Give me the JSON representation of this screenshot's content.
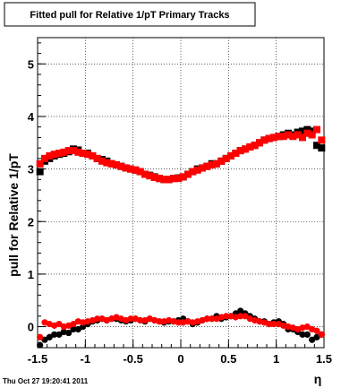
{
  "title": "Fitted pull for Relative 1/pT  Primary Tracks",
  "timestamp": "Thu Oct 27 19:20:41 2011",
  "chart_data": {
    "type": "scatter",
    "title": "Fitted pull for Relative 1/pT  Primary Tracks",
    "xlabel": "η",
    "ylabel": "pull for Relative 1/pT",
    "xlim": [
      -1.5,
      1.5
    ],
    "ylim": [
      -0.4,
      5.5
    ],
    "xticks": [
      "-1.5",
      "-1",
      "-0.5",
      "0",
      "0.5",
      "1",
      "1.5"
    ],
    "yticks": [
      "0",
      "1",
      "2",
      "3",
      "4",
      "5"
    ],
    "grid": true,
    "series": [
      {
        "color": "#000000",
        "marker": "square",
        "x": [
          -1.475,
          -1.425,
          -1.375,
          -1.325,
          -1.275,
          -1.225,
          -1.175,
          -1.125,
          -1.075,
          -1.025,
          -0.975,
          -0.925,
          -0.875,
          -0.825,
          -0.775,
          -0.725,
          -0.675,
          -0.625,
          -0.575,
          -0.525,
          -0.475,
          -0.425,
          -0.375,
          -0.325,
          -0.275,
          -0.225,
          -0.175,
          -0.125,
          -0.075,
          -0.025,
          0.025,
          0.075,
          0.125,
          0.175,
          0.225,
          0.275,
          0.325,
          0.375,
          0.425,
          0.475,
          0.525,
          0.575,
          0.625,
          0.675,
          0.725,
          0.775,
          0.825,
          0.875,
          0.925,
          0.975,
          1.025,
          1.075,
          1.125,
          1.175,
          1.225,
          1.275,
          1.325,
          1.375,
          1.425,
          1.475
        ],
        "values": [
          2.95,
          3.15,
          3.2,
          3.25,
          3.28,
          3.3,
          3.33,
          3.38,
          3.36,
          3.3,
          3.3,
          3.25,
          3.2,
          3.18,
          3.15,
          3.1,
          3.08,
          3.05,
          3.02,
          3.0,
          2.98,
          2.95,
          2.9,
          2.88,
          2.85,
          2.82,
          2.8,
          2.8,
          2.82,
          2.83,
          2.85,
          2.9,
          2.95,
          3.0,
          3.02,
          3.05,
          3.1,
          3.1,
          3.15,
          3.2,
          3.25,
          3.3,
          3.35,
          3.38,
          3.42,
          3.45,
          3.5,
          3.55,
          3.58,
          3.6,
          3.62,
          3.65,
          3.68,
          3.65,
          3.7,
          3.72,
          3.75,
          3.72,
          3.45,
          3.4
        ]
      },
      {
        "color": "#ff0000",
        "marker": "square",
        "x": [
          -1.475,
          -1.425,
          -1.375,
          -1.325,
          -1.275,
          -1.225,
          -1.175,
          -1.125,
          -1.075,
          -1.025,
          -0.975,
          -0.925,
          -0.875,
          -0.825,
          -0.775,
          -0.725,
          -0.675,
          -0.625,
          -0.575,
          -0.525,
          -0.475,
          -0.425,
          -0.375,
          -0.325,
          -0.275,
          -0.225,
          -0.175,
          -0.125,
          -0.075,
          -0.025,
          0.025,
          0.075,
          0.125,
          0.175,
          0.225,
          0.275,
          0.325,
          0.375,
          0.425,
          0.475,
          0.525,
          0.575,
          0.625,
          0.675,
          0.725,
          0.775,
          0.825,
          0.875,
          0.925,
          0.975,
          1.025,
          1.075,
          1.125,
          1.175,
          1.225,
          1.275,
          1.325,
          1.375,
          1.425,
          1.475
        ],
        "values": [
          3.1,
          3.2,
          3.25,
          3.28,
          3.3,
          3.32,
          3.35,
          3.35,
          3.32,
          3.3,
          3.28,
          3.25,
          3.2,
          3.15,
          3.12,
          3.1,
          3.08,
          3.05,
          3.02,
          3.0,
          2.98,
          2.95,
          2.9,
          2.87,
          2.84,
          2.82,
          2.8,
          2.8,
          2.82,
          2.82,
          2.85,
          2.9,
          2.95,
          2.98,
          3.02,
          3.05,
          3.08,
          3.1,
          3.15,
          3.2,
          3.25,
          3.3,
          3.35,
          3.38,
          3.42,
          3.45,
          3.5,
          3.55,
          3.58,
          3.6,
          3.62,
          3.62,
          3.65,
          3.62,
          3.65,
          3.6,
          3.68,
          3.65,
          3.75,
          3.55
        ]
      },
      {
        "color": "#000000",
        "marker": "circle",
        "x": [
          -1.475,
          -1.425,
          -1.375,
          -1.325,
          -1.275,
          -1.225,
          -1.175,
          -1.125,
          -1.075,
          -1.025,
          -0.975,
          -0.925,
          -0.875,
          -0.825,
          -0.775,
          -0.725,
          -0.675,
          -0.625,
          -0.575,
          -0.525,
          -0.475,
          -0.425,
          -0.375,
          -0.325,
          -0.275,
          -0.225,
          -0.175,
          -0.125,
          -0.075,
          -0.025,
          0.025,
          0.075,
          0.125,
          0.175,
          0.225,
          0.275,
          0.325,
          0.375,
          0.425,
          0.475,
          0.525,
          0.575,
          0.625,
          0.675,
          0.725,
          0.775,
          0.825,
          0.875,
          0.925,
          0.975,
          1.025,
          1.075,
          1.125,
          1.175,
          1.225,
          1.275,
          1.325,
          1.375,
          1.425,
          1.475
        ],
        "values": [
          -0.35,
          -0.25,
          -0.2,
          -0.15,
          -0.15,
          -0.1,
          -0.12,
          -0.05,
          -0.05,
          0.0,
          0.05,
          0.1,
          0.12,
          0.15,
          0.12,
          0.15,
          0.15,
          0.12,
          0.1,
          0.12,
          0.15,
          0.12,
          0.1,
          0.15,
          0.12,
          0.1,
          0.08,
          0.1,
          0.1,
          0.12,
          0.15,
          0.1,
          0.05,
          0.08,
          0.12,
          0.15,
          0.15,
          0.2,
          0.15,
          0.18,
          0.2,
          0.25,
          0.3,
          0.25,
          0.2,
          0.15,
          0.1,
          0.1,
          0.05,
          0.08,
          0.1,
          0.05,
          -0.05,
          -0.05,
          -0.1,
          -0.15,
          -0.15,
          -0.25,
          -0.2,
          -0.15
        ]
      },
      {
        "color": "#ff0000",
        "marker": "circle",
        "x": [
          -1.475,
          -1.425,
          -1.375,
          -1.325,
          -1.275,
          -1.225,
          -1.175,
          -1.125,
          -1.075,
          -1.025,
          -0.975,
          -0.925,
          -0.875,
          -0.825,
          -0.775,
          -0.725,
          -0.675,
          -0.625,
          -0.575,
          -0.525,
          -0.475,
          -0.425,
          -0.375,
          -0.325,
          -0.275,
          -0.225,
          -0.175,
          -0.125,
          -0.075,
          -0.025,
          0.025,
          0.075,
          0.125,
          0.175,
          0.225,
          0.275,
          0.325,
          0.375,
          0.425,
          0.475,
          0.525,
          0.575,
          0.625,
          0.675,
          0.725,
          0.775,
          0.825,
          0.875,
          0.925,
          0.975,
          1.025,
          1.075,
          1.125,
          1.175,
          1.225,
          1.275,
          1.325,
          1.375,
          1.425,
          1.475
        ],
        "values": [
          -0.2,
          0.08,
          0.05,
          0.02,
          0.05,
          0.0,
          0.02,
          0.05,
          0.1,
          0.08,
          0.1,
          0.12,
          0.15,
          0.15,
          0.12,
          0.15,
          0.18,
          0.15,
          0.12,
          0.15,
          0.15,
          0.12,
          0.12,
          0.15,
          0.12,
          0.1,
          0.1,
          0.12,
          0.1,
          0.08,
          0.08,
          0.1,
          0.08,
          0.1,
          0.12,
          0.15,
          0.15,
          0.15,
          0.18,
          0.2,
          0.2,
          0.18,
          0.2,
          0.2,
          0.15,
          0.12,
          0.1,
          0.08,
          0.05,
          0.05,
          0.05,
          0.02,
          0.0,
          -0.02,
          -0.05,
          -0.02,
          0.0,
          -0.05,
          -0.08,
          -0.15
        ]
      }
    ]
  }
}
